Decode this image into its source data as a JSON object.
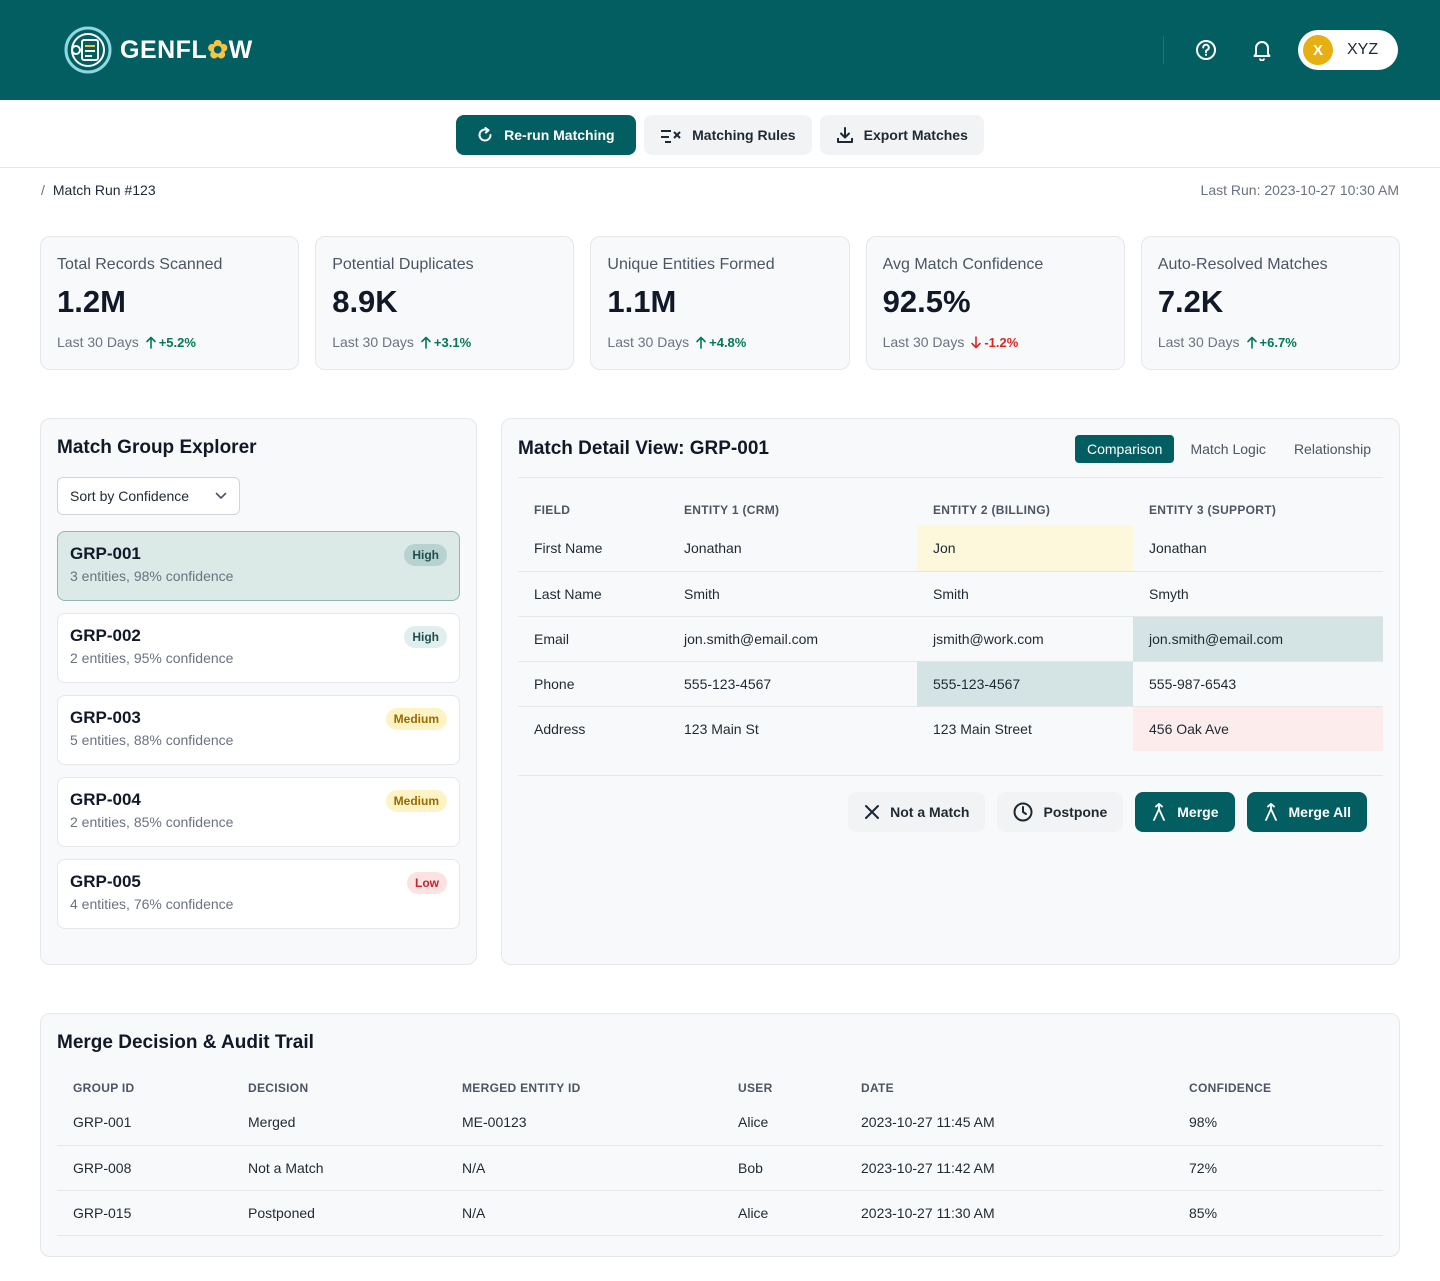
{
  "brand": {
    "name_pre": "GENFL",
    "name_gear": "✿",
    "name_post": "W",
    "accent": "#035e62"
  },
  "header": {
    "user_initial": "X",
    "user_name": "XYZ"
  },
  "toolbar": {
    "rerun_label": "Re-run Matching",
    "rules_label": "Matching Rules",
    "export_label": "Export Matches"
  },
  "breadcrumb": {
    "sep": "/",
    "current": "Match Run #123"
  },
  "last_run": "Last Run: 2023-10-27 10:30 AM",
  "kpis": [
    {
      "label": "Total Records Scanned",
      "value": "1.2M",
      "period": "Last 30 Days",
      "delta": "+5.2%",
      "direction": "up"
    },
    {
      "label": "Potential Duplicates",
      "value": "8.9K",
      "period": "Last 30 Days",
      "delta": "+3.1%",
      "direction": "up"
    },
    {
      "label": "Unique Entities Formed",
      "value": "1.1M",
      "period": "Last 30 Days",
      "delta": "+4.8%",
      "direction": "up"
    },
    {
      "label": "Avg Match Confidence",
      "value": "92.5%",
      "period": "Last 30 Days",
      "delta": "-1.2%",
      "direction": "down"
    },
    {
      "label": "Auto-Resolved Matches",
      "value": "7.2K",
      "period": "Last 30 Days",
      "delta": "+6.7%",
      "direction": "up"
    }
  ],
  "explorer": {
    "title": "Match Group Explorer",
    "sort_value": "Sort by Confidence",
    "groups": [
      {
        "id": "GRP-001",
        "summary": "3 entities, 98% confidence",
        "level": "High"
      },
      {
        "id": "GRP-002",
        "summary": "2 entities, 95% confidence",
        "level": "High"
      },
      {
        "id": "GRP-003",
        "summary": "5 entities, 88% confidence",
        "level": "Medium"
      },
      {
        "id": "GRP-004",
        "summary": "2 entities, 85% confidence",
        "level": "Medium"
      },
      {
        "id": "GRP-005",
        "summary": "4 entities, 76% confidence",
        "level": "Low"
      }
    ]
  },
  "detail": {
    "title": "Match Detail View: GRP-001",
    "tabs": [
      "Comparison",
      "Match Logic",
      "Relationship"
    ],
    "columns": [
      "Field",
      "Entity 1 (CRM)",
      "Entity 2 (Billing)",
      "Entity 3 (Support)"
    ],
    "rows": [
      {
        "field": "First Name",
        "e1": "Jonathan",
        "e2": "Jon",
        "e3": "Jonathan"
      },
      {
        "field": "Last Name",
        "e1": "Smith",
        "e2": "Smith",
        "e3": "Smyth"
      },
      {
        "field": "Email",
        "e1": "jon.smith@email.com",
        "e2": "jsmith@work.com",
        "e3": "jon.smith@email.com"
      },
      {
        "field": "Phone",
        "e1": "555-123-4567",
        "e2": "555-123-4567",
        "e3": "555-987-6543"
      },
      {
        "field": "Address",
        "e1": "123 Main St",
        "e2": "123 Main Street",
        "e3": "456 Oak Ave"
      }
    ],
    "actions": {
      "not_match": "Not a Match",
      "postpone": "Postpone",
      "merge": "Merge",
      "merge_all": "Merge All"
    }
  },
  "audit": {
    "title": "Merge Decision & Audit Trail",
    "columns": [
      "Group ID",
      "Decision",
      "Merged Entity ID",
      "User",
      "Date",
      "Confidence"
    ],
    "rows": [
      {
        "group": "GRP-001",
        "decision": "Merged",
        "entity": "ME-00123",
        "user": "Alice",
        "date": "2023-10-27 11:45 AM",
        "confidence": "98%"
      },
      {
        "group": "GRP-008",
        "decision": "Not a Match",
        "entity": "N/A",
        "user": "Bob",
        "date": "2023-10-27 11:42 AM",
        "confidence": "72%"
      },
      {
        "group": "GRP-015",
        "decision": "Postponed",
        "entity": "N/A",
        "user": "Alice",
        "date": "2023-10-27 11:30 AM",
        "confidence": "85%"
      }
    ]
  }
}
